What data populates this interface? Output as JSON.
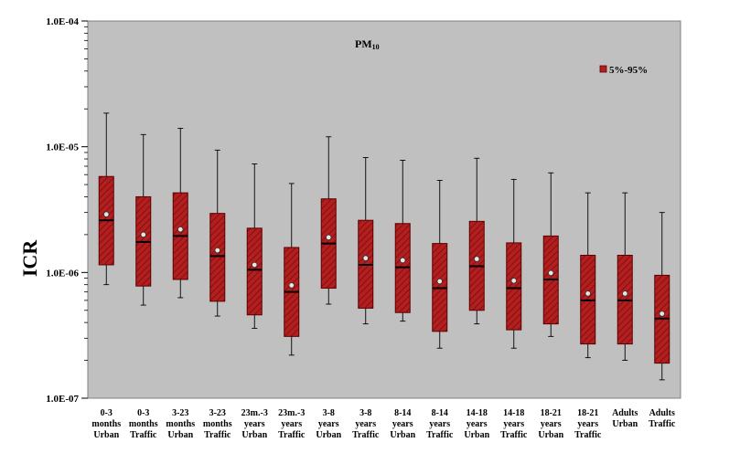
{
  "chart_data": {
    "type": "box",
    "title": "PM",
    "title_sub": "10",
    "ylabel": "ICR",
    "xlabel": "",
    "yscale": "log",
    "ylim": [
      1e-07,
      0.0001
    ],
    "yticks": [
      "1.0E-07",
      "1.0E-06",
      "1.0E-05",
      "1.0E-04"
    ],
    "grid": false,
    "legend": {
      "label": "5%-95%",
      "placement": "top-right"
    },
    "colors": {
      "plot_bg": "#c0c0c0",
      "box_fill": "#b41e1e",
      "box_edge": "#5a0000",
      "hatch": "#6e0f0f"
    },
    "categories": [
      [
        "0-3",
        "months",
        "Urban"
      ],
      [
        "0-3",
        "months",
        "Traffic"
      ],
      [
        "3-23",
        "months",
        "Urban"
      ],
      [
        "3-23",
        "months",
        "Traffic"
      ],
      [
        "23m.-3",
        "years",
        "Urban"
      ],
      [
        "23m.-3",
        "years",
        "Traffic"
      ],
      [
        "3-8",
        "years",
        "Urban"
      ],
      [
        "3-8",
        "years",
        "Traffic"
      ],
      [
        "8-14",
        "years",
        "Urban"
      ],
      [
        "8-14",
        "years",
        "Traffic"
      ],
      [
        "14-18",
        "years",
        "Urban"
      ],
      [
        "14-18",
        "years",
        "Traffic"
      ],
      [
        "18-21",
        "years",
        "Urban"
      ],
      [
        "18-21",
        "years",
        "Traffic"
      ],
      [
        "Adults",
        "Urban",
        ""
      ],
      [
        "Adults",
        "Traffic",
        ""
      ]
    ],
    "series": [
      {
        "min": [
          8e-07,
          5.5e-07,
          6.3e-07,
          4.5e-07,
          3.6e-07,
          2.2e-07,
          5.6e-07,
          3.9e-07,
          4.1e-07,
          2.5e-07,
          3.9e-07,
          2.5e-07,
          3.1e-07,
          2.1e-07,
          2e-07,
          1.4e-07
        ],
        "q05": [
          1.15e-06,
          7.8e-07,
          8.8e-07,
          5.9e-07,
          4.6e-07,
          3.1e-07,
          7.5e-07,
          5.2e-07,
          4.8e-07,
          3.4e-07,
          5e-07,
          3.5e-07,
          3.9e-07,
          2.7e-07,
          2.7e-07,
          1.9e-07
        ],
        "median": [
          2.6e-06,
          1.75e-06,
          1.95e-06,
          1.35e-06,
          1.05e-06,
          7e-07,
          1.7e-06,
          1.15e-06,
          1.1e-06,
          7.5e-07,
          1.12e-06,
          7.5e-07,
          8.8e-07,
          6e-07,
          6e-07,
          4.3e-07
        ],
        "mean": [
          2.9e-06,
          2e-06,
          2.2e-06,
          1.5e-06,
          1.15e-06,
          7.9e-07,
          1.9e-06,
          1.3e-06,
          1.25e-06,
          8.5e-07,
          1.28e-06,
          8.6e-07,
          9.9e-07,
          6.8e-07,
          6.8e-07,
          4.7e-07
        ],
        "q95": [
          5.8e-06,
          4e-06,
          4.3e-06,
          2.95e-06,
          2.25e-06,
          1.58e-06,
          3.85e-06,
          2.6e-06,
          2.45e-06,
          1.7e-06,
          2.55e-06,
          1.72e-06,
          1.95e-06,
          1.37e-06,
          1.37e-06,
          9.5e-07
        ],
        "max": [
          1.85e-05,
          1.25e-05,
          1.4e-05,
          9.4e-06,
          7.3e-06,
          5.1e-06,
          1.2e-05,
          8.2e-06,
          7.8e-06,
          5.4e-06,
          8.1e-06,
          5.5e-06,
          6.2e-06,
          4.3e-06,
          4.3e-06,
          3e-06
        ]
      }
    ]
  }
}
